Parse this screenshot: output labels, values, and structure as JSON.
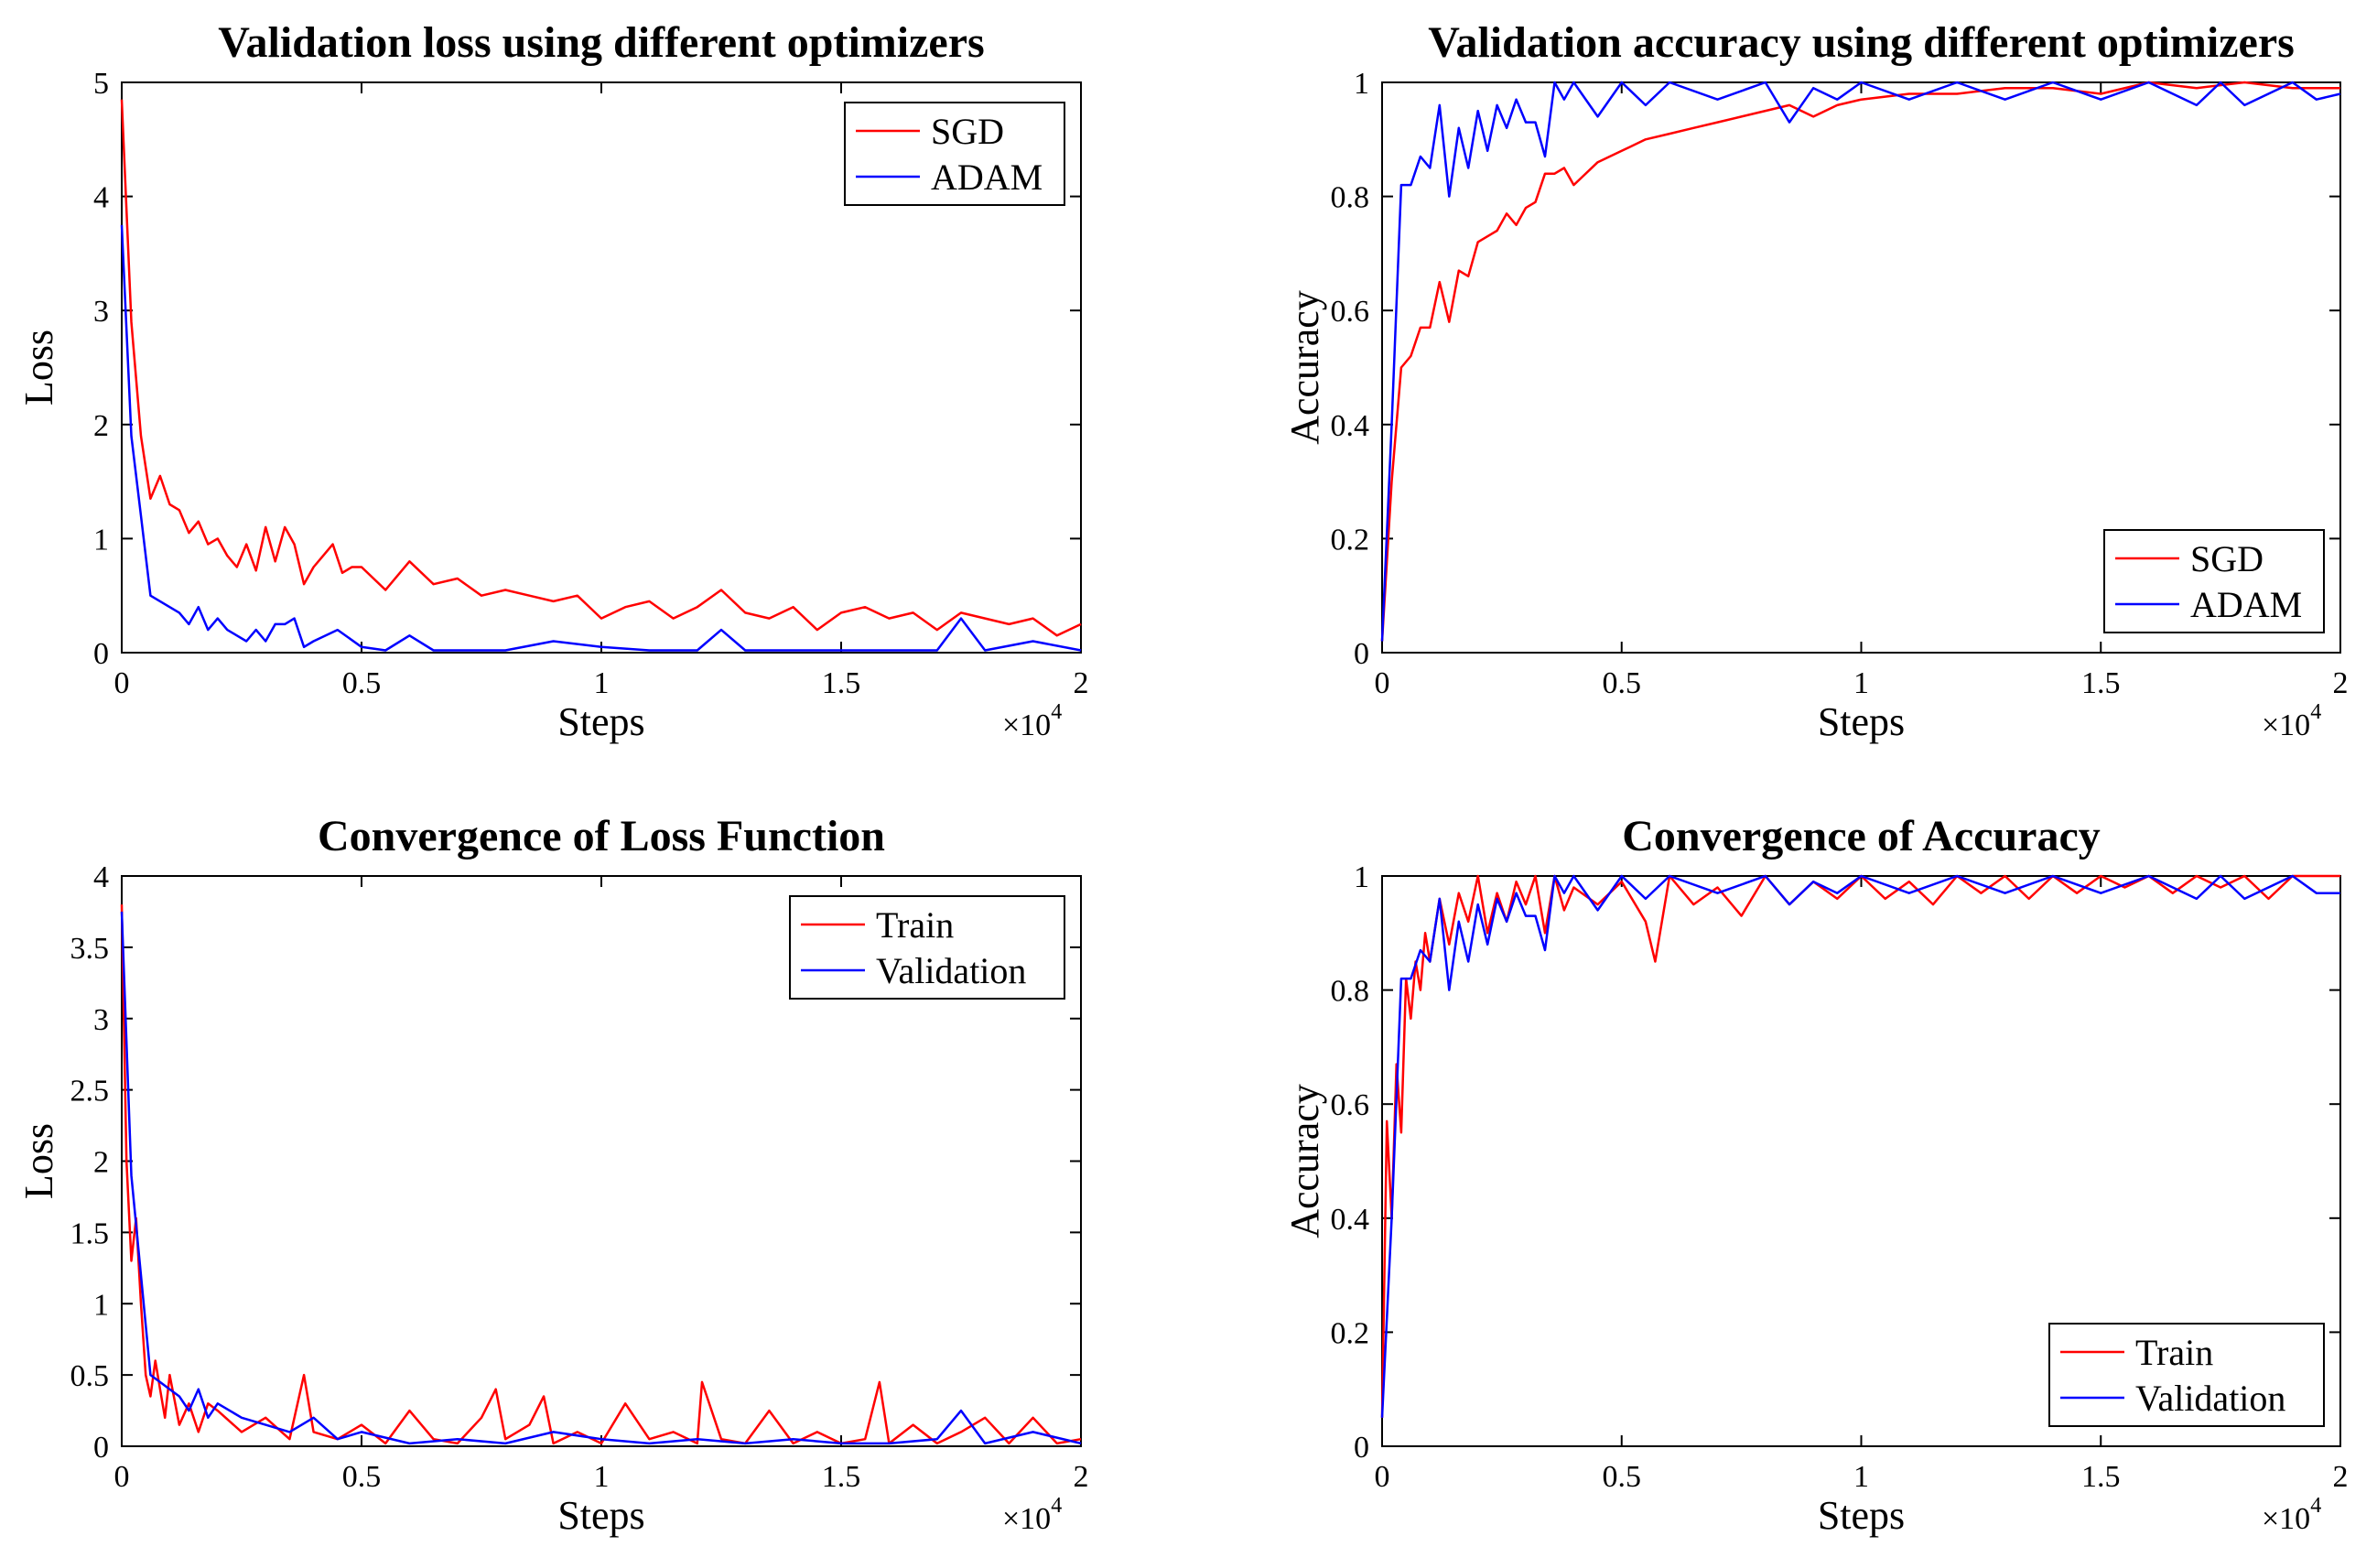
{
  "chart_data": [
    {
      "type": "line",
      "title": "Validation loss using different optimizers",
      "xlabel": "Steps",
      "ylabel": "Loss",
      "x_multiplier": "×10^4",
      "x_multiplier_base": "×10",
      "x_multiplier_exp": "4",
      "xlim": [
        0,
        2
      ],
      "ylim": [
        0,
        5
      ],
      "xticks": [
        0,
        0.5,
        1,
        1.5,
        2
      ],
      "xtick_labels": [
        "0",
        "0.5",
        "1",
        "1.5",
        "2"
      ],
      "yticks": [
        0,
        1,
        2,
        3,
        4,
        5
      ],
      "ytick_labels": [
        "0",
        "1",
        "2",
        "3",
        "4",
        "5"
      ],
      "legend_position": "top-right",
      "series": [
        {
          "name": "SGD",
          "color": "#ff0000",
          "x": [
            0,
            0.02,
            0.04,
            0.06,
            0.08,
            0.1,
            0.12,
            0.14,
            0.16,
            0.18,
            0.2,
            0.22,
            0.24,
            0.26,
            0.28,
            0.3,
            0.32,
            0.34,
            0.36,
            0.38,
            0.4,
            0.42,
            0.44,
            0.46,
            0.48,
            0.5,
            0.55,
            0.6,
            0.65,
            0.7,
            0.75,
            0.8,
            0.85,
            0.9,
            0.95,
            1.0,
            1.05,
            1.1,
            1.15,
            1.2,
            1.25,
            1.3,
            1.35,
            1.4,
            1.45,
            1.5,
            1.55,
            1.6,
            1.65,
            1.7,
            1.75,
            1.8,
            1.85,
            1.9,
            1.95,
            2.0
          ],
          "y": [
            4.85,
            2.9,
            1.9,
            1.35,
            1.55,
            1.3,
            1.25,
            1.05,
            1.15,
            0.95,
            1.0,
            0.85,
            0.75,
            0.95,
            0.72,
            1.1,
            0.8,
            1.1,
            0.95,
            0.6,
            0.75,
            0.85,
            0.95,
            0.7,
            0.75,
            0.75,
            0.55,
            0.8,
            0.6,
            0.65,
            0.5,
            0.55,
            0.5,
            0.45,
            0.5,
            0.3,
            0.4,
            0.45,
            0.3,
            0.4,
            0.55,
            0.35,
            0.3,
            0.4,
            0.2,
            0.35,
            0.4,
            0.3,
            0.35,
            0.2,
            0.35,
            0.3,
            0.25,
            0.3,
            0.15,
            0.25
          ]
        },
        {
          "name": "ADAM",
          "color": "#0000ff",
          "x": [
            0,
            0.02,
            0.04,
            0.06,
            0.08,
            0.1,
            0.12,
            0.14,
            0.16,
            0.18,
            0.2,
            0.22,
            0.24,
            0.26,
            0.28,
            0.3,
            0.32,
            0.34,
            0.36,
            0.38,
            0.4,
            0.45,
            0.5,
            0.55,
            0.6,
            0.65,
            0.7,
            0.8,
            0.9,
            1.0,
            1.1,
            1.2,
            1.25,
            1.3,
            1.4,
            1.5,
            1.6,
            1.7,
            1.75,
            1.8,
            1.9,
            2.0
          ],
          "y": [
            3.75,
            1.9,
            1.2,
            0.5,
            0.45,
            0.4,
            0.35,
            0.25,
            0.4,
            0.2,
            0.3,
            0.2,
            0.15,
            0.1,
            0.2,
            0.1,
            0.25,
            0.25,
            0.3,
            0.05,
            0.1,
            0.2,
            0.05,
            0.02,
            0.15,
            0.02,
            0.02,
            0.02,
            0.1,
            0.05,
            0.02,
            0.02,
            0.2,
            0.02,
            0.02,
            0.02,
            0.02,
            0.02,
            0.3,
            0.02,
            0.1,
            0.02
          ]
        }
      ]
    },
    {
      "type": "line",
      "title": "Validation accuracy using different optimizers",
      "xlabel": "Steps",
      "ylabel": "Accuracy",
      "x_multiplier": "×10^4",
      "x_multiplier_base": "×10",
      "x_multiplier_exp": "4",
      "xlim": [
        0,
        2
      ],
      "ylim": [
        0,
        1
      ],
      "xticks": [
        0,
        0.5,
        1,
        1.5,
        2
      ],
      "xtick_labels": [
        "0",
        "0.5",
        "1",
        "1.5",
        "2"
      ],
      "yticks": [
        0,
        0.2,
        0.4,
        0.6,
        0.8,
        1
      ],
      "ytick_labels": [
        "0",
        "0.2",
        "0.4",
        "0.6",
        "0.8",
        "1"
      ],
      "legend_position": "bottom-right",
      "series": [
        {
          "name": "SGD",
          "color": "#ff0000",
          "x": [
            0,
            0.02,
            0.04,
            0.06,
            0.08,
            0.1,
            0.12,
            0.14,
            0.16,
            0.18,
            0.2,
            0.22,
            0.24,
            0.26,
            0.28,
            0.3,
            0.32,
            0.34,
            0.36,
            0.38,
            0.4,
            0.45,
            0.5,
            0.55,
            0.6,
            0.65,
            0.7,
            0.75,
            0.8,
            0.85,
            0.9,
            0.95,
            1.0,
            1.1,
            1.2,
            1.3,
            1.4,
            1.5,
            1.6,
            1.7,
            1.8,
            1.9,
            2.0
          ],
          "y": [
            0.02,
            0.3,
            0.5,
            0.52,
            0.57,
            0.57,
            0.65,
            0.58,
            0.67,
            0.66,
            0.72,
            0.73,
            0.74,
            0.77,
            0.75,
            0.78,
            0.79,
            0.84,
            0.84,
            0.85,
            0.82,
            0.86,
            0.88,
            0.9,
            0.91,
            0.92,
            0.93,
            0.94,
            0.95,
            0.96,
            0.94,
            0.96,
            0.97,
            0.98,
            0.98,
            0.99,
            0.99,
            0.98,
            1.0,
            0.99,
            1.0,
            0.99,
            0.99
          ]
        },
        {
          "name": "ADAM",
          "color": "#0000ff",
          "x": [
            0,
            0.02,
            0.04,
            0.06,
            0.08,
            0.1,
            0.12,
            0.14,
            0.16,
            0.18,
            0.2,
            0.22,
            0.24,
            0.26,
            0.28,
            0.3,
            0.32,
            0.34,
            0.36,
            0.38,
            0.4,
            0.45,
            0.5,
            0.55,
            0.6,
            0.7,
            0.8,
            0.85,
            0.9,
            0.95,
            1.0,
            1.1,
            1.2,
            1.3,
            1.4,
            1.5,
            1.6,
            1.7,
            1.75,
            1.8,
            1.9,
            1.95,
            2.0
          ],
          "y": [
            0.02,
            0.4,
            0.82,
            0.82,
            0.87,
            0.85,
            0.96,
            0.8,
            0.92,
            0.85,
            0.95,
            0.88,
            0.96,
            0.92,
            0.97,
            0.93,
            0.93,
            0.87,
            1.0,
            0.97,
            1.0,
            0.94,
            1.0,
            0.96,
            1.0,
            0.97,
            1.0,
            0.93,
            0.99,
            0.97,
            1.0,
            0.97,
            1.0,
            0.97,
            1.0,
            0.97,
            1.0,
            0.96,
            1.0,
            0.96,
            1.0,
            0.97,
            0.98
          ]
        }
      ]
    },
    {
      "type": "line",
      "title": "Convergence of Loss Function",
      "xlabel": "Steps",
      "ylabel": "Loss",
      "x_multiplier": "×10^4",
      "x_multiplier_base": "×10",
      "x_multiplier_exp": "4",
      "xlim": [
        0,
        2
      ],
      "ylim": [
        0,
        4
      ],
      "xticks": [
        0,
        0.5,
        1,
        1.5,
        2
      ],
      "xtick_labels": [
        "0",
        "0.5",
        "1",
        "1.5",
        "2"
      ],
      "yticks": [
        0,
        0.5,
        1,
        1.5,
        2,
        2.5,
        3,
        3.5,
        4
      ],
      "ytick_labels": [
        "0",
        "0.5",
        "1",
        "1.5",
        "2",
        "2.5",
        "3",
        "3.5",
        "4"
      ],
      "legend_position": "top-right",
      "series": [
        {
          "name": "Train",
          "color": "#ff0000",
          "x": [
            0,
            0.01,
            0.02,
            0.03,
            0.04,
            0.05,
            0.06,
            0.07,
            0.08,
            0.09,
            0.1,
            0.12,
            0.14,
            0.16,
            0.18,
            0.2,
            0.25,
            0.3,
            0.35,
            0.38,
            0.4,
            0.45,
            0.5,
            0.55,
            0.6,
            0.65,
            0.7,
            0.75,
            0.78,
            0.8,
            0.85,
            0.88,
            0.9,
            0.95,
            1.0,
            1.05,
            1.1,
            1.15,
            1.2,
            1.21,
            1.25,
            1.3,
            1.35,
            1.4,
            1.45,
            1.5,
            1.55,
            1.58,
            1.6,
            1.65,
            1.7,
            1.75,
            1.8,
            1.85,
            1.9,
            1.95,
            2.0
          ],
          "y": [
            3.8,
            2.0,
            1.3,
            1.6,
            1.0,
            0.5,
            0.35,
            0.6,
            0.4,
            0.2,
            0.5,
            0.15,
            0.3,
            0.1,
            0.3,
            0.25,
            0.1,
            0.2,
            0.05,
            0.5,
            0.1,
            0.05,
            0.15,
            0.02,
            0.25,
            0.05,
            0.02,
            0.2,
            0.4,
            0.05,
            0.15,
            0.35,
            0.02,
            0.1,
            0.02,
            0.3,
            0.05,
            0.1,
            0.02,
            0.45,
            0.05,
            0.02,
            0.25,
            0.02,
            0.1,
            0.02,
            0.05,
            0.45,
            0.02,
            0.15,
            0.02,
            0.1,
            0.2,
            0.02,
            0.2,
            0.02,
            0.05
          ]
        },
        {
          "name": "Validation",
          "color": "#0000ff",
          "x": [
            0,
            0.02,
            0.04,
            0.06,
            0.08,
            0.1,
            0.12,
            0.14,
            0.16,
            0.18,
            0.2,
            0.25,
            0.3,
            0.35,
            0.4,
            0.45,
            0.5,
            0.6,
            0.7,
            0.8,
            0.9,
            1.0,
            1.1,
            1.2,
            1.3,
            1.4,
            1.5,
            1.6,
            1.7,
            1.75,
            1.8,
            1.9,
            2.0
          ],
          "y": [
            3.75,
            1.9,
            1.2,
            0.5,
            0.45,
            0.4,
            0.35,
            0.25,
            0.4,
            0.2,
            0.3,
            0.2,
            0.15,
            0.1,
            0.2,
            0.05,
            0.1,
            0.02,
            0.05,
            0.02,
            0.1,
            0.05,
            0.02,
            0.05,
            0.02,
            0.05,
            0.02,
            0.02,
            0.05,
            0.25,
            0.02,
            0.1,
            0.02
          ]
        }
      ]
    },
    {
      "type": "line",
      "title": "Convergence of Accuracy",
      "xlabel": "Steps",
      "ylabel": "Accuracy",
      "x_multiplier": "×10^4",
      "x_multiplier_base": "×10",
      "x_multiplier_exp": "4",
      "xlim": [
        0,
        2
      ],
      "ylim": [
        0,
        1
      ],
      "xticks": [
        0,
        0.5,
        1,
        1.5,
        2
      ],
      "xtick_labels": [
        "0",
        "0.5",
        "1",
        "1.5",
        "2"
      ],
      "yticks": [
        0,
        0.2,
        0.4,
        0.6,
        0.8,
        1
      ],
      "ytick_labels": [
        "0",
        "0.2",
        "0.4",
        "0.6",
        "0.8",
        "1"
      ],
      "legend_position": "bottom-right",
      "series": [
        {
          "name": "Train",
          "color": "#ff0000",
          "x": [
            0,
            0.01,
            0.02,
            0.03,
            0.04,
            0.05,
            0.06,
            0.07,
            0.08,
            0.09,
            0.1,
            0.12,
            0.14,
            0.16,
            0.18,
            0.2,
            0.22,
            0.24,
            0.26,
            0.28,
            0.3,
            0.32,
            0.34,
            0.36,
            0.38,
            0.4,
            0.45,
            0.5,
            0.55,
            0.57,
            0.6,
            0.65,
            0.7,
            0.75,
            0.8,
            0.85,
            0.9,
            0.95,
            1.0,
            1.05,
            1.1,
            1.15,
            1.2,
            1.25,
            1.3,
            1.35,
            1.4,
            1.45,
            1.5,
            1.55,
            1.6,
            1.65,
            1.7,
            1.75,
            1.8,
            1.85,
            1.9,
            1.95,
            2.0
          ],
          "y": [
            0.05,
            0.57,
            0.4,
            0.67,
            0.55,
            0.82,
            0.75,
            0.85,
            0.8,
            0.9,
            0.85,
            0.96,
            0.88,
            0.97,
            0.92,
            1.0,
            0.9,
            0.97,
            0.92,
            0.99,
            0.95,
            1.0,
            0.9,
            1.0,
            0.94,
            0.98,
            0.95,
            0.99,
            0.92,
            0.85,
            1.0,
            0.95,
            0.98,
            0.93,
            1.0,
            0.95,
            0.99,
            0.96,
            1.0,
            0.96,
            0.99,
            0.95,
            1.0,
            0.97,
            1.0,
            0.96,
            1.0,
            0.97,
            1.0,
            0.98,
            1.0,
            0.97,
            1.0,
            0.98,
            1.0,
            0.96,
            1.0,
            1.0,
            1.0
          ]
        },
        {
          "name": "Validation",
          "color": "#0000ff",
          "x": [
            0,
            0.02,
            0.04,
            0.06,
            0.08,
            0.1,
            0.12,
            0.14,
            0.16,
            0.18,
            0.2,
            0.22,
            0.24,
            0.26,
            0.28,
            0.3,
            0.32,
            0.34,
            0.36,
            0.38,
            0.4,
            0.45,
            0.5,
            0.55,
            0.6,
            0.7,
            0.8,
            0.85,
            0.9,
            0.95,
            1.0,
            1.1,
            1.2,
            1.3,
            1.4,
            1.5,
            1.6,
            1.7,
            1.75,
            1.8,
            1.9,
            1.95,
            2.0
          ],
          "y": [
            0.05,
            0.4,
            0.82,
            0.82,
            0.87,
            0.85,
            0.96,
            0.8,
            0.92,
            0.85,
            0.95,
            0.88,
            0.96,
            0.92,
            0.97,
            0.93,
            0.93,
            0.87,
            1.0,
            0.97,
            1.0,
            0.94,
            1.0,
            0.96,
            1.0,
            0.97,
            1.0,
            0.95,
            0.99,
            0.97,
            1.0,
            0.97,
            1.0,
            0.97,
            1.0,
            0.97,
            1.0,
            0.96,
            1.0,
            0.96,
            1.0,
            0.97,
            0.97
          ]
        }
      ]
    }
  ]
}
